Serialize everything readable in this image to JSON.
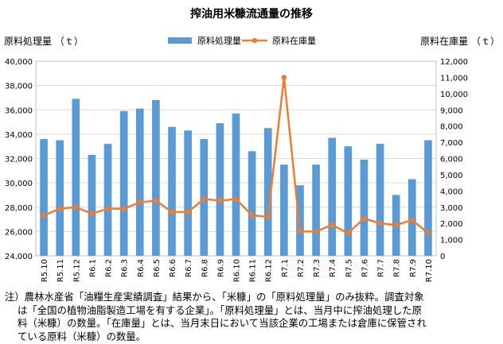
{
  "chart_data": {
    "type": "bar-line",
    "title": "搾油用米糠流通量の推移",
    "y_left_label": "原料処理量 （ｔ）",
    "y_right_label": "原料在庫量 （ｔ）",
    "y_left_range": [
      24000,
      40000
    ],
    "y_left_ticks": [
      "24,000",
      "26,000",
      "28,000",
      "30,000",
      "32,000",
      "34,000",
      "36,000",
      "38,000",
      "40,000"
    ],
    "y_right_range": [
      0,
      12000
    ],
    "y_right_ticks": [
      "0",
      "1,000",
      "2,000",
      "3,000",
      "4,000",
      "5,000",
      "6,000",
      "7,000",
      "8,000",
      "9,000",
      "10,000",
      "11,000",
      "12,000"
    ],
    "grid": true,
    "legend_position": "top",
    "categories": [
      "R5.10",
      "R5.11",
      "R5.12",
      "R6.1",
      "R6.2",
      "R6.3",
      "R6.4",
      "R6.5",
      "R6.6",
      "R6.7",
      "R6.8",
      "R6.9",
      "R6.10",
      "R6.11",
      "R6.12",
      "R7.1",
      "R7.2",
      "R7.3",
      "R7.4",
      "R7.5",
      "R7.6",
      "R7.7",
      "R7.8",
      "R7.9",
      "R7.10"
    ],
    "series": [
      {
        "name": "原料処理量",
        "kind": "bar",
        "axis": "left",
        "color": "#5b9bd5",
        "values": [
          33600,
          33500,
          36900,
          32300,
          33200,
          35900,
          36100,
          36800,
          34600,
          34300,
          33600,
          34900,
          35700,
          32600,
          34500,
          31500,
          29800,
          31500,
          33700,
          33000,
          31900,
          33200,
          29000,
          30300,
          33500
        ]
      },
      {
        "name": "原料在庫量",
        "kind": "line",
        "axis": "right",
        "color": "#ed7d31",
        "values": [
          2500,
          2900,
          3000,
          2600,
          2900,
          2900,
          3300,
          3400,
          2700,
          2700,
          3500,
          3400,
          3500,
          2500,
          2400,
          11000,
          1500,
          1500,
          1900,
          1400,
          2300,
          2000,
          1900,
          2200,
          1400
        ]
      }
    ]
  },
  "notes": {
    "line1": "注）農林水産省「油糧生産実績調査」結果から、「米糠」の「原料処理量」のみ抜粋。調査対象",
    "line2": "は「全国の植物油脂製造工場を有する企業」。「原料処理量」とは、当月中に搾油処理した原",
    "line3": "料（米糠）の数量。「在庫量」とは、当月末日において当該企業の工場または倉庫に保管され",
    "line4": "ている原料（米糠）の数量。"
  }
}
